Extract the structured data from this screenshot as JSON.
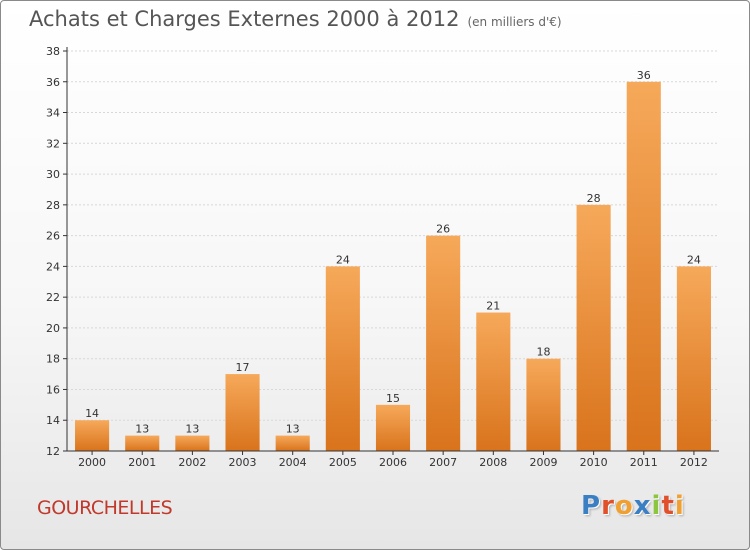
{
  "header": {
    "title": "Achats et Charges Externes 2000 à 2012",
    "unit": "(en milliers d'€)"
  },
  "footer": {
    "commune": "GOURCHELLES",
    "brand": "Proxiti",
    "brand_letters": [
      {
        "ch": "P",
        "color": "#3a7fc4"
      },
      {
        "ch": "r",
        "color": "#e0502a"
      },
      {
        "ch": "o",
        "color": "#f0a030"
      },
      {
        "ch": "x",
        "color": "#3a7fc4"
      },
      {
        "ch": "i",
        "color": "#8cc63f"
      },
      {
        "ch": "t",
        "color": "#e0502a"
      },
      {
        "ch": "i",
        "color": "#f0a030"
      }
    ]
  },
  "colors": {
    "bar_top": "#f6a95a",
    "bar_bottom": "#d9731c",
    "grid": "#d8d8d8",
    "axis": "#333333",
    "label": "#333333"
  },
  "chart_data": {
    "type": "bar",
    "title": "Achats et Charges Externes 2000 à 2012",
    "subtitle": "(en milliers d'€)",
    "xlabel": "",
    "ylabel": "",
    "categories": [
      "2000",
      "2001",
      "2002",
      "2003",
      "2004",
      "2005",
      "2006",
      "2007",
      "2008",
      "2009",
      "2010",
      "2011",
      "2012"
    ],
    "values": [
      14,
      13,
      13,
      17,
      13,
      24,
      15,
      26,
      21,
      18,
      28,
      36,
      24
    ],
    "ylim": [
      12,
      38
    ],
    "yticks": [
      12,
      14,
      16,
      18,
      20,
      22,
      24,
      26,
      28,
      30,
      32,
      34,
      36,
      38
    ],
    "grid": true,
    "data_labels": true
  }
}
